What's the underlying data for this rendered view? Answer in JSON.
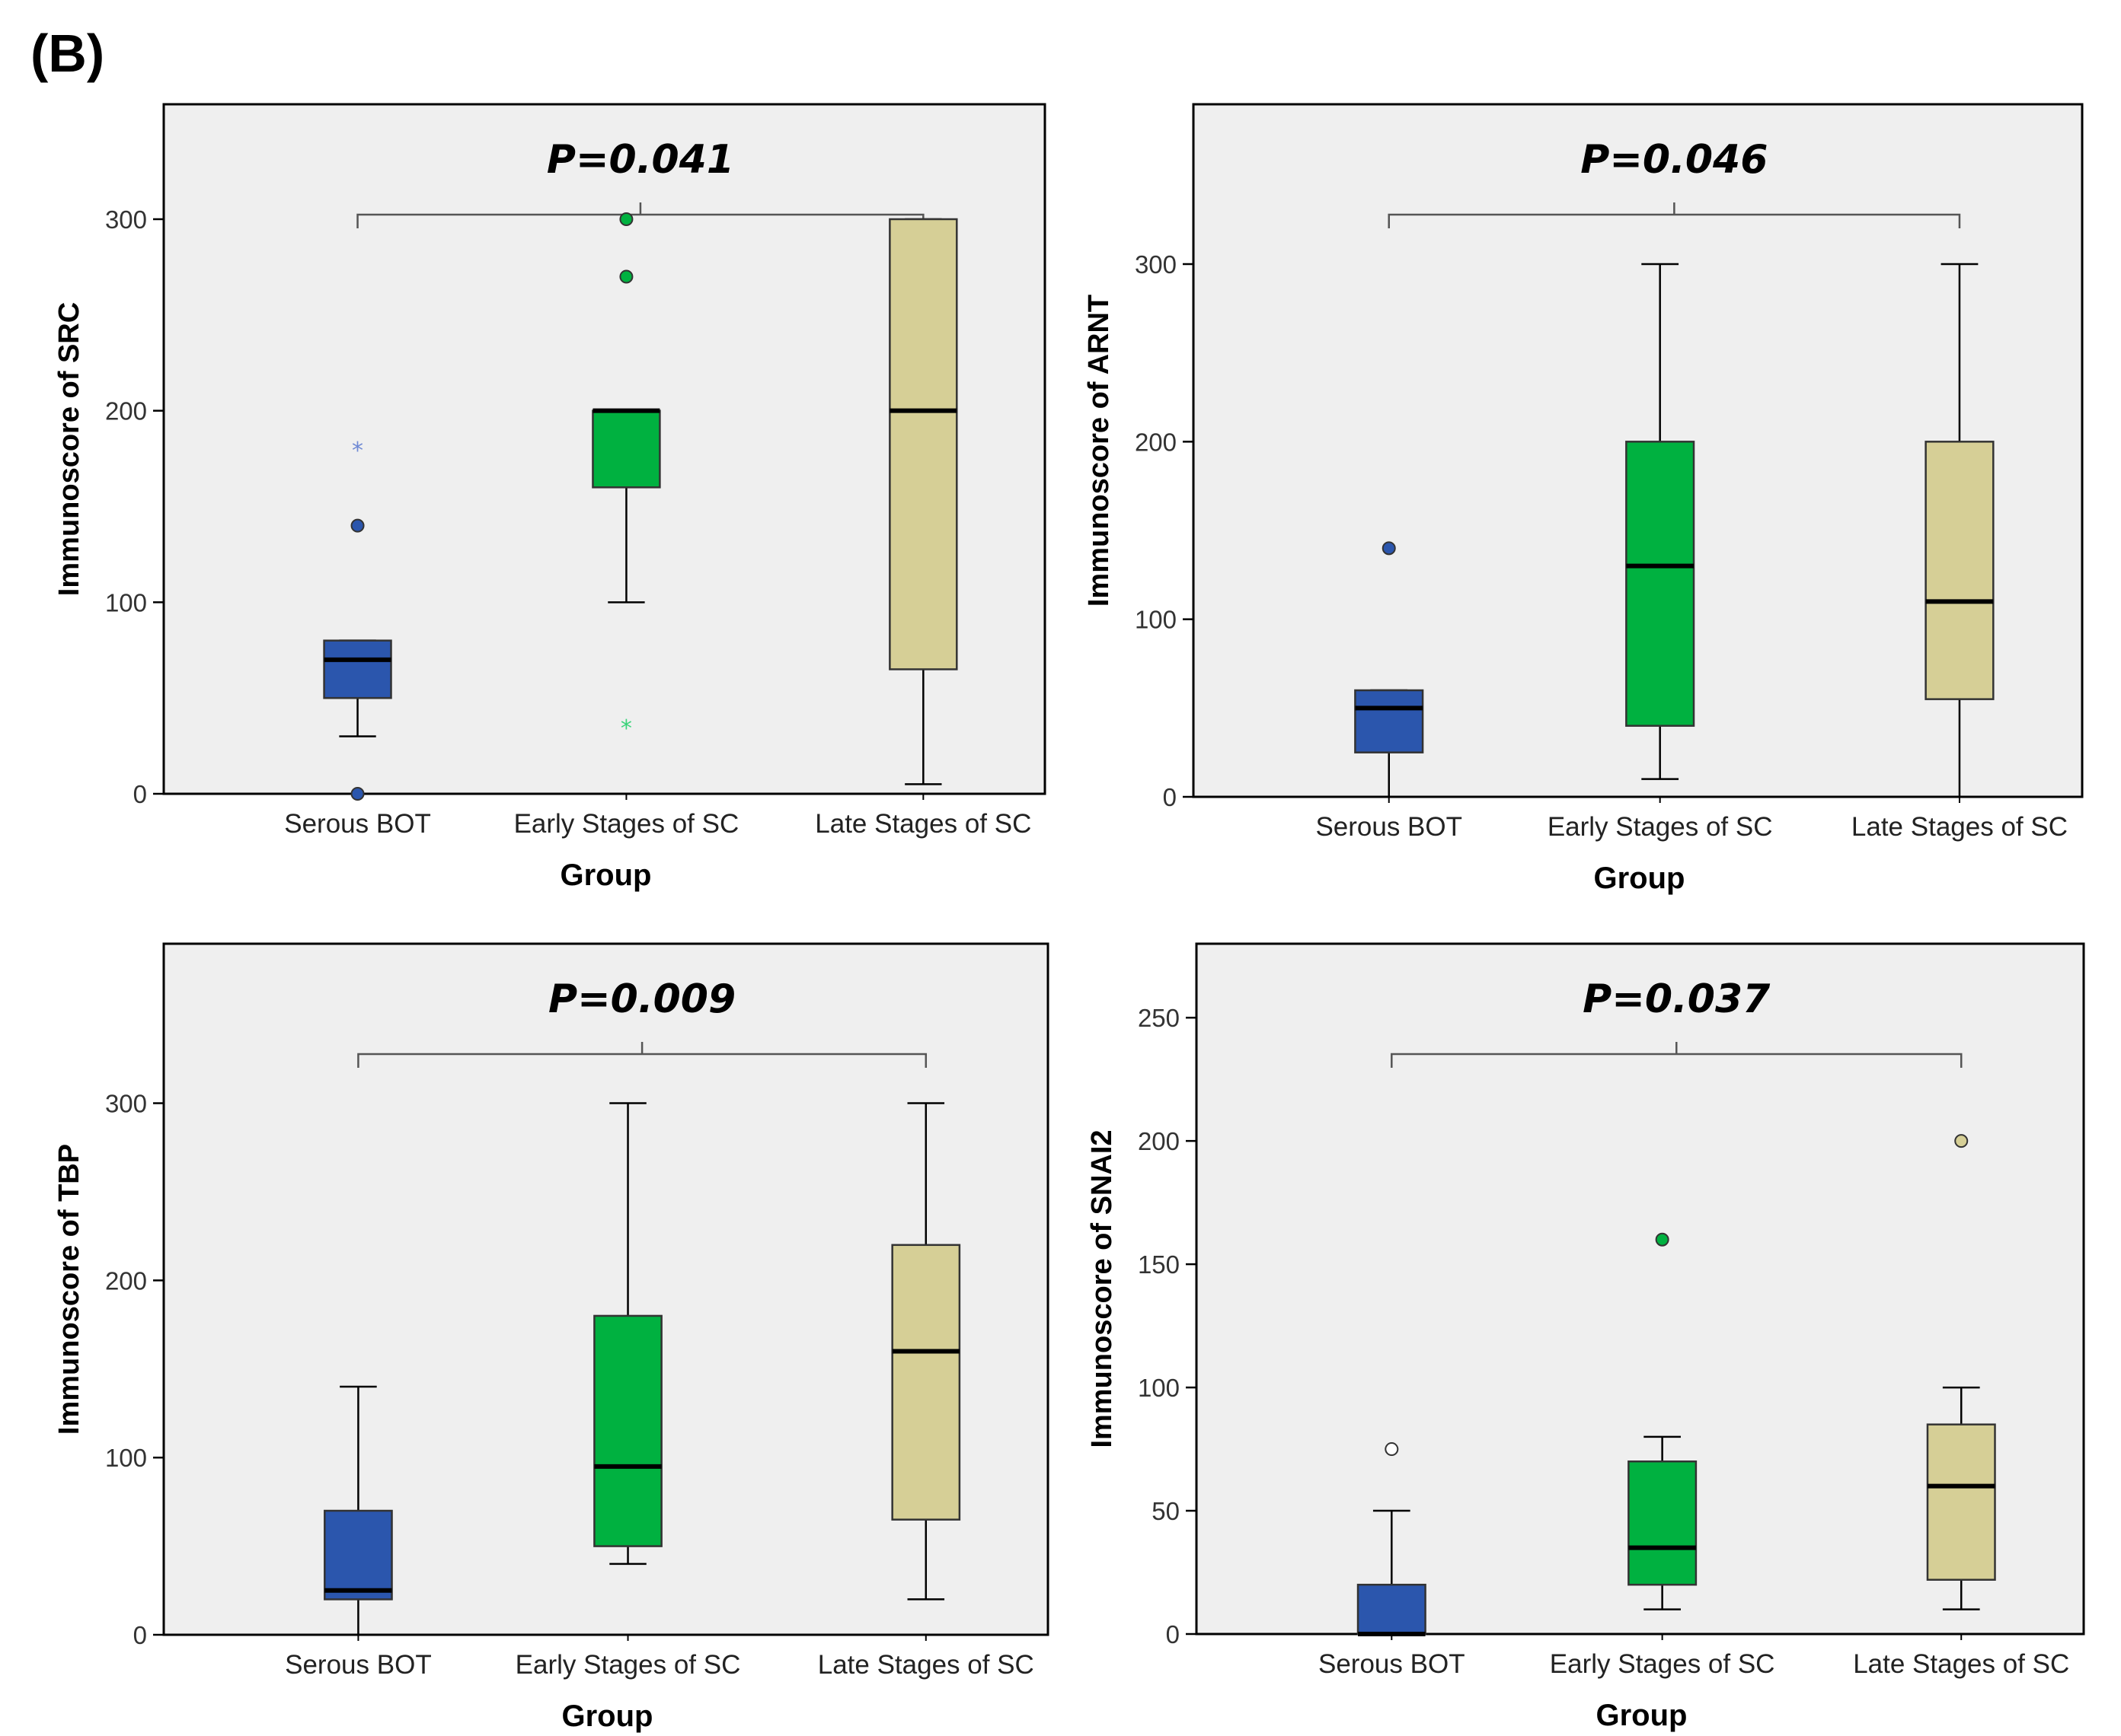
{
  "figure_label": "(B)",
  "chart_data": [
    {
      "type": "boxplot",
      "ylabel": "Immunoscore of SRC",
      "xlabel": "Group",
      "annotation": "P=0.041",
      "ylim": [
        0,
        360
      ],
      "yticks": [
        0,
        100,
        200,
        300
      ],
      "categories": [
        "Serous BOT",
        "Early Stages of SC",
        "Late Stages of SC"
      ],
      "colors": [
        "#2b56ad",
        "#00b140",
        "#d6cf96"
      ],
      "boxes": [
        {
          "whisker_low": 30,
          "q1": 50,
          "median": 70,
          "q3": 80,
          "whisker_high": 80,
          "outliers": [
            {
              "value": 140,
              "marker": "circle"
            },
            {
              "value": 0,
              "marker": "circle"
            },
            {
              "value": 180,
              "marker": "star"
            }
          ]
        },
        {
          "whisker_low": 100,
          "q1": 160,
          "median": 200,
          "q3": 200,
          "whisker_high": 200,
          "outliers": [
            {
              "value": 300,
              "marker": "circle"
            },
            {
              "value": 270,
              "marker": "circle"
            },
            {
              "value": 35,
              "marker": "star"
            }
          ]
        },
        {
          "whisker_low": 5,
          "q1": 65,
          "median": 200,
          "q3": 300,
          "whisker_high": 300,
          "outliers": []
        }
      ]
    },
    {
      "type": "boxplot",
      "ylabel": "Immunoscore of ARNT",
      "xlabel": "Group",
      "annotation": "P=0.046",
      "ylim": [
        0,
        390
      ],
      "yticks": [
        0,
        100,
        200,
        300
      ],
      "categories": [
        "Serous BOT",
        "Early Stages of SC",
        "Late Stages of SC"
      ],
      "colors": [
        "#2b56ad",
        "#00b140",
        "#d6cf96"
      ],
      "boxes": [
        {
          "whisker_low": 0,
          "q1": 25,
          "median": 50,
          "q3": 60,
          "whisker_high": 60,
          "outliers": [
            {
              "value": 140,
              "marker": "circle"
            }
          ]
        },
        {
          "whisker_low": 10,
          "q1": 40,
          "median": 130,
          "q3": 200,
          "whisker_high": 300,
          "outliers": []
        },
        {
          "whisker_low": 0,
          "q1": 55,
          "median": 110,
          "q3": 200,
          "whisker_high": 300,
          "outliers": []
        }
      ]
    },
    {
      "type": "boxplot",
      "ylabel": "Immunoscore of TBP",
      "xlabel": "Group",
      "annotation": "P=0.009",
      "ylim": [
        0,
        390
      ],
      "yticks": [
        0,
        100,
        200,
        300
      ],
      "categories": [
        "Serous BOT",
        "Early Stages of SC",
        "Late Stages of SC"
      ],
      "colors": [
        "#2b56ad",
        "#00b140",
        "#d6cf96"
      ],
      "boxes": [
        {
          "whisker_low": 0,
          "q1": 20,
          "median": 25,
          "q3": 70,
          "whisker_high": 140,
          "outliers": []
        },
        {
          "whisker_low": 40,
          "q1": 50,
          "median": 95,
          "q3": 180,
          "whisker_high": 300,
          "outliers": []
        },
        {
          "whisker_low": 20,
          "q1": 65,
          "median": 160,
          "q3": 220,
          "whisker_high": 300,
          "outliers": []
        }
      ]
    },
    {
      "type": "boxplot",
      "ylabel": "Immunoscore of SNAI2",
      "xlabel": "Group",
      "annotation": "P=0.037",
      "ylim": [
        0,
        280
      ],
      "yticks": [
        0,
        50,
        100,
        150,
        200,
        250
      ],
      "categories": [
        "Serous BOT",
        "Early Stages of SC",
        "Late Stages of SC"
      ],
      "colors": [
        "#2b56ad",
        "#00b140",
        "#d6cf96"
      ],
      "boxes": [
        {
          "whisker_low": 0,
          "q1": 0,
          "median": 0,
          "q3": 20,
          "whisker_high": 50,
          "outliers": [
            {
              "value": 75,
              "marker": "circle",
              "hollow": true
            }
          ]
        },
        {
          "whisker_low": 10,
          "q1": 20,
          "median": 35,
          "q3": 70,
          "whisker_high": 80,
          "outliers": [
            {
              "value": 160,
              "marker": "circle"
            }
          ]
        },
        {
          "whisker_low": 10,
          "q1": 22,
          "median": 60,
          "q3": 85,
          "whisker_high": 100,
          "outliers": [
            {
              "value": 200,
              "marker": "circle"
            }
          ]
        }
      ]
    }
  ]
}
